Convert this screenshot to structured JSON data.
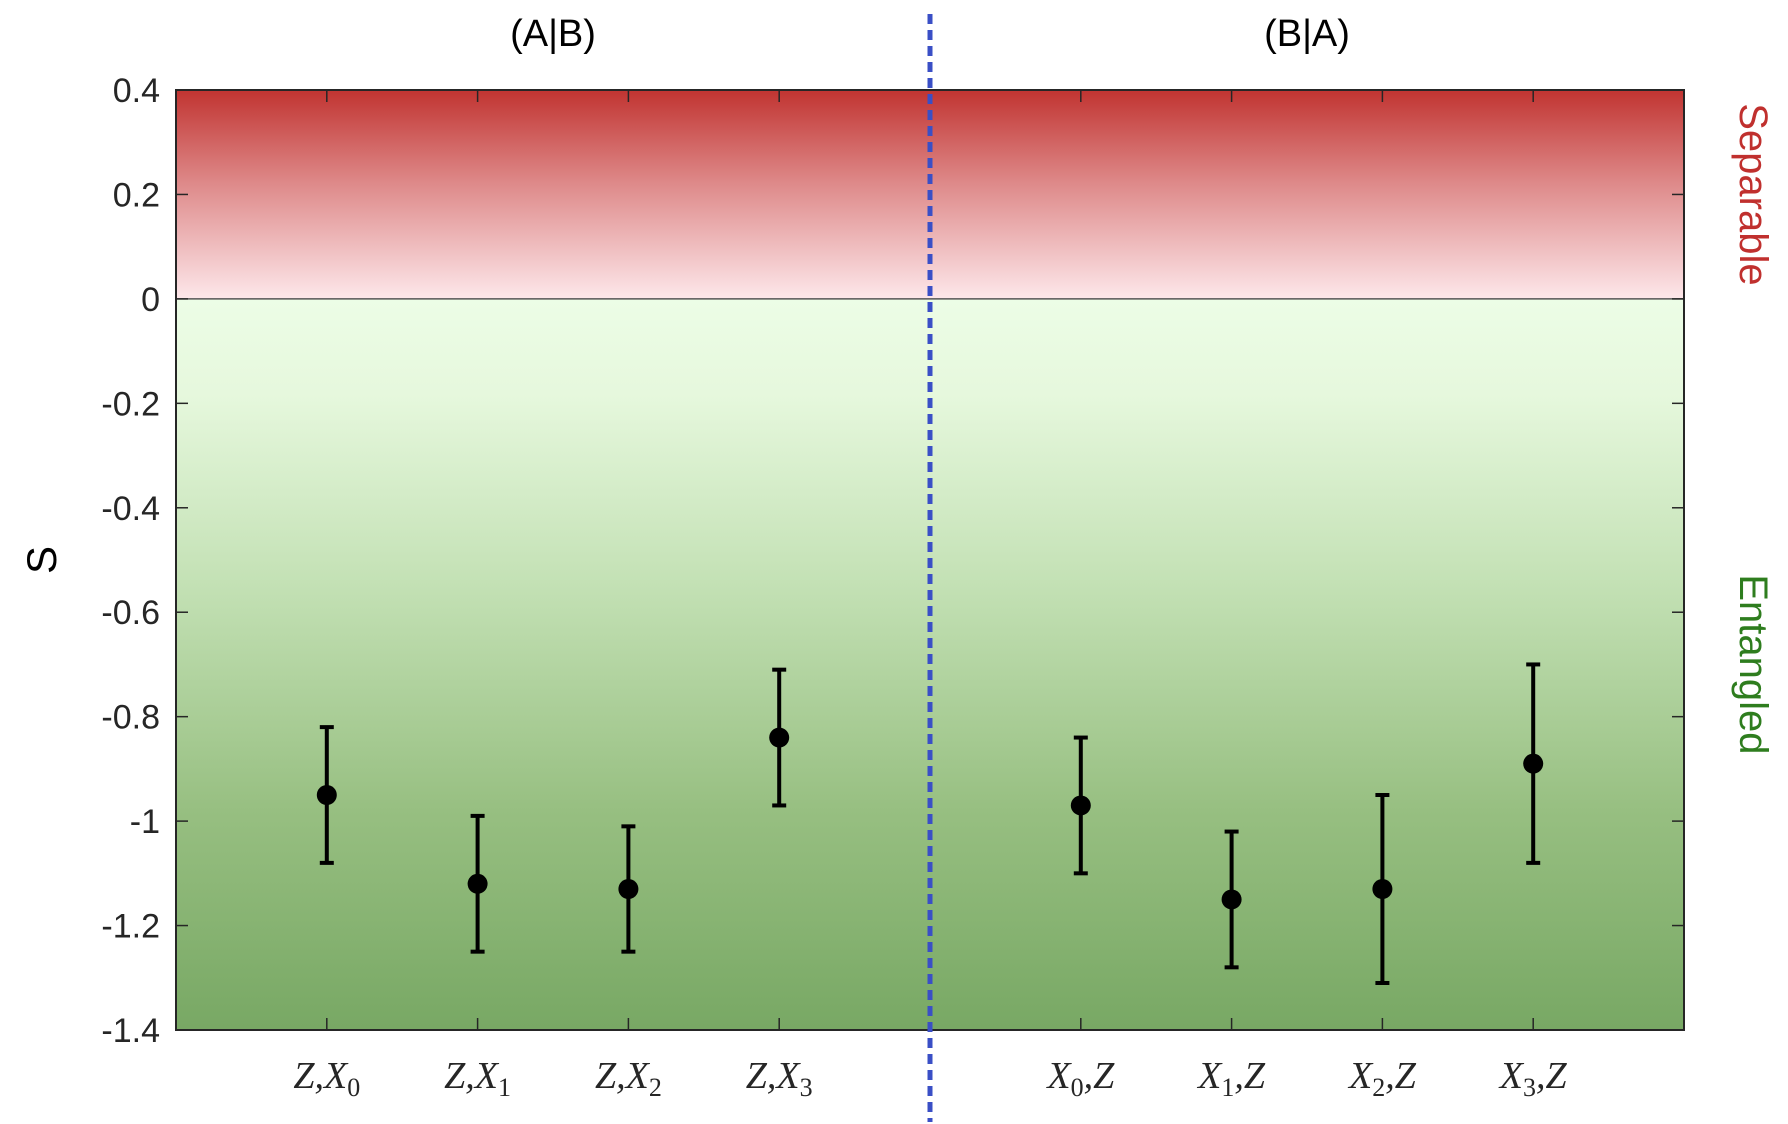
{
  "chart_data": {
    "type": "scatter",
    "panels": [
      {
        "title": "(A|B)",
        "categories": [
          "Z,X0",
          "Z,X1",
          "Z,X2",
          "Z,X3"
        ]
      },
      {
        "title": "(B|A)",
        "categories": [
          "X0,Z",
          "X1,Z",
          "X2,Z",
          "X3,Z"
        ]
      }
    ],
    "categories": [
      {
        "main1": "Z,X",
        "sub1": "0",
        "main2": ""
      },
      {
        "main1": "Z,X",
        "sub1": "1",
        "main2": ""
      },
      {
        "main1": "Z,X",
        "sub1": "2",
        "main2": ""
      },
      {
        "main1": "Z,X",
        "sub1": "3",
        "main2": ""
      },
      {
        "main1": "X",
        "sub1": "0",
        "main2": ",Z"
      },
      {
        "main1": "X",
        "sub1": "1",
        "main2": ",Z"
      },
      {
        "main1": "X",
        "sub1": "2",
        "main2": ",Z"
      },
      {
        "main1": "X",
        "sub1": "3",
        "main2": ",Z"
      }
    ],
    "x_positions": [
      1,
      2,
      3,
      4,
      6,
      7,
      8,
      9
    ],
    "xlim": [
      0,
      10
    ],
    "values": [
      -0.95,
      -1.12,
      -1.13,
      -0.84,
      -0.97,
      -1.15,
      -1.13,
      -0.89
    ],
    "error_low": [
      -1.08,
      -1.25,
      -1.25,
      -0.97,
      -1.1,
      -1.28,
      -1.31,
      -1.08
    ],
    "error_high": [
      -0.82,
      -0.99,
      -1.01,
      -0.71,
      -0.84,
      -1.02,
      -0.95,
      -0.7
    ],
    "ylabel": "S",
    "ylim": [
      -1.4,
      0.4
    ],
    "yticks": [
      "0.4",
      "0.2",
      "0",
      "-0.2",
      "-0.4",
      "-0.6",
      "-0.8",
      "-1",
      "-1.2",
      "-1.4"
    ],
    "ytick_values": [
      0.4,
      0.2,
      0,
      -0.2,
      -0.4,
      -0.6,
      -0.8,
      -1,
      -1.2,
      -1.4
    ],
    "separator_x": 5,
    "regions": [
      {
        "label": "Separable",
        "from": 0,
        "to": 0.4,
        "color": "#c0302e"
      },
      {
        "label": "Entangled",
        "from": -1.4,
        "to": 0,
        "color": "#2e7d1e"
      }
    ],
    "marker_color": "#000000",
    "separator_color": "#3a4fc6",
    "grid": false
  }
}
